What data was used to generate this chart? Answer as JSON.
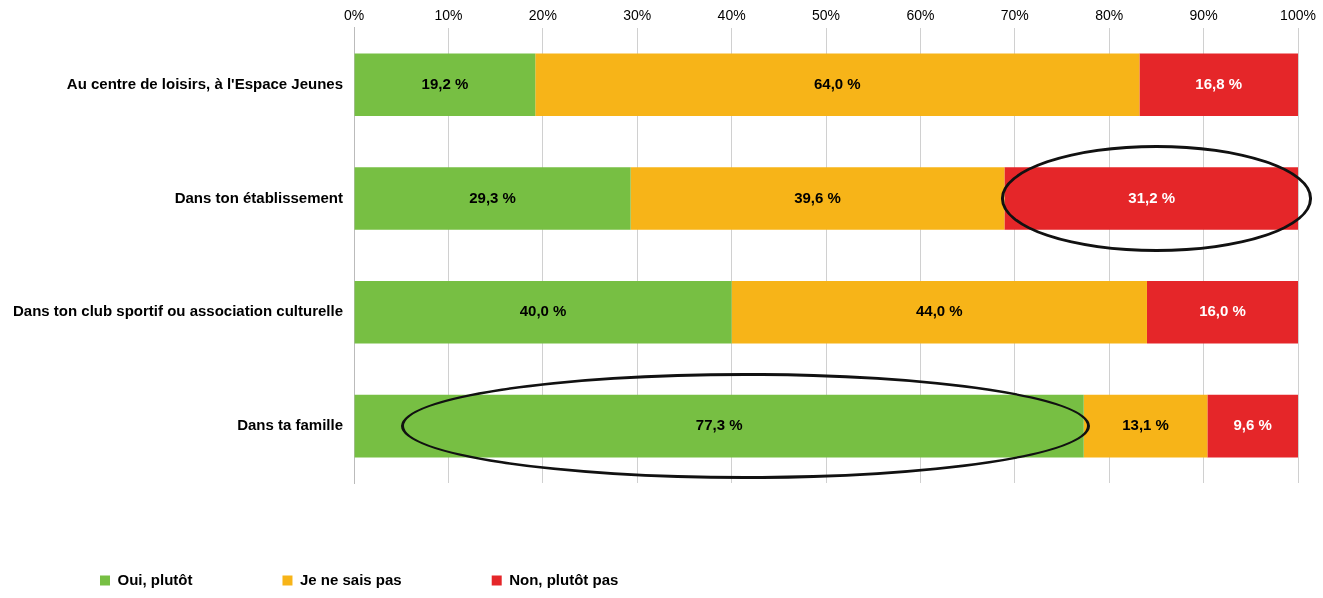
{
  "chart_data": {
    "type": "bar",
    "orientation": "horizontal",
    "stacked": true,
    "categories": [
      "Au centre de loisirs, à l'Espace Jeunes",
      "Dans ton établissement",
      "Dans ton club sportif ou association culturelle",
      "Dans ta famille"
    ],
    "series": [
      {
        "name": "Oui, plutôt",
        "color": "#77bf43",
        "values": [
          19.2,
          29.3,
          40.0,
          77.3
        ],
        "value_labels": [
          "19,2 %",
          "29,3 %",
          "40,0 %",
          "77,3 %"
        ]
      },
      {
        "name": "Je ne sais pas",
        "color": "#f7b418",
        "values": [
          64.0,
          39.6,
          44.0,
          13.1
        ],
        "value_labels": [
          "64,0 %",
          "39,6 %",
          "44,0 %",
          "13,1 %"
        ]
      },
      {
        "name": "Non, plutôt pas",
        "color": "#e52629",
        "values": [
          16.8,
          31.2,
          16.0,
          9.6
        ],
        "value_labels": [
          "16,8 %",
          "31,2 %",
          "16,0 %",
          "9,6 %"
        ]
      }
    ],
    "xlim": [
      0,
      100
    ],
    "xticks": [
      {
        "value": 0,
        "label": "0%"
      },
      {
        "value": 10,
        "label": "10%"
      },
      {
        "value": 20,
        "label": "20%"
      },
      {
        "value": 30,
        "label": "30%"
      },
      {
        "value": 40,
        "label": "40%"
      },
      {
        "value": 50,
        "label": "50%"
      },
      {
        "value": 60,
        "label": "60%"
      },
      {
        "value": 70,
        "label": "70%"
      },
      {
        "value": 80,
        "label": "80%"
      },
      {
        "value": 90,
        "label": "90%"
      },
      {
        "value": 100,
        "label": "100%"
      }
    ],
    "grid": "x",
    "legend": "bottom left"
  }
}
